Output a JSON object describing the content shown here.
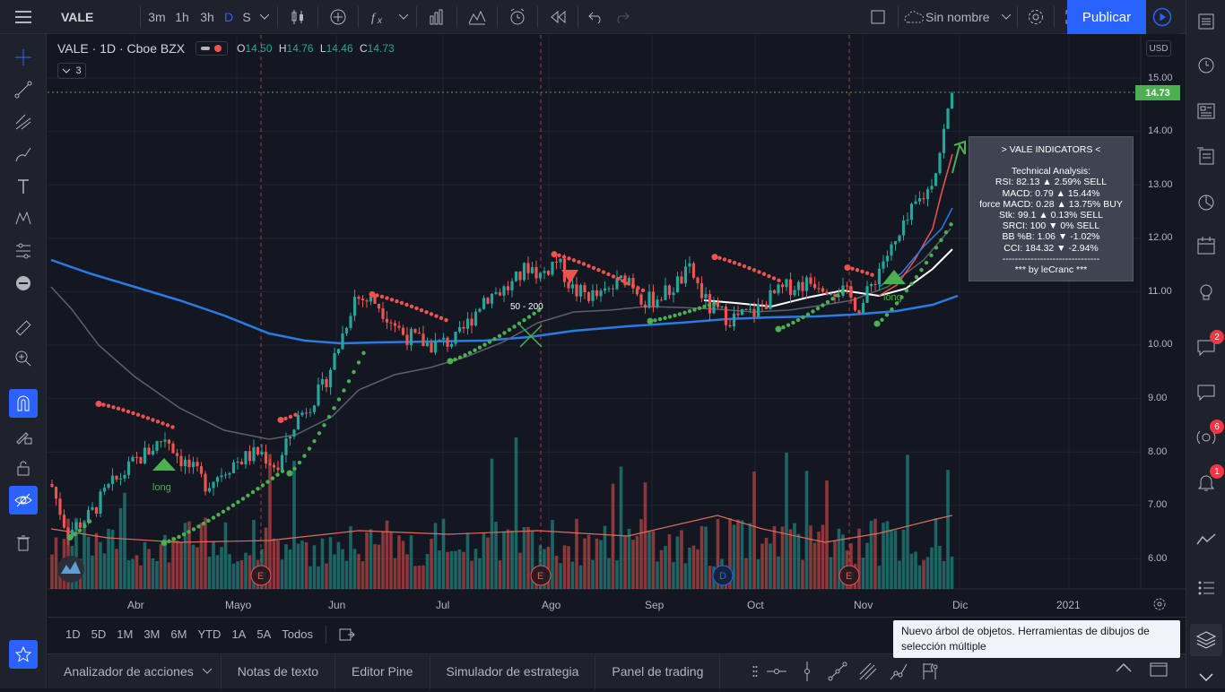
{
  "topbar": {
    "symbol": "VALE",
    "intervals": [
      "3m",
      "1h",
      "3h",
      "D",
      "S"
    ],
    "active_interval": "D",
    "layout_name": "Sin nombre",
    "publish_label": "Publicar"
  },
  "legend": {
    "title": "VALE · 1D · Cboe BZX",
    "o_label": "O",
    "o": "14.50",
    "h_label": "H",
    "h": "14.76",
    "l_label": "L",
    "l": "14.46",
    "c_label": "C",
    "c": "14.73",
    "collapse_count": "3"
  },
  "price_axis": {
    "currency": "USD",
    "labels": [
      "15.00",
      "14.00",
      "13.00",
      "12.00",
      "11.00",
      "10.00",
      "9.00",
      "8.00",
      "7.00",
      "6.00"
    ],
    "last_price": "14.73"
  },
  "time_axis": {
    "labels": [
      "Abr",
      "Mayo",
      "Jun",
      "Jul",
      "Ago",
      "Sep",
      "Oct",
      "Nov",
      "Dic",
      "2021"
    ]
  },
  "annotations": {
    "long1": "long",
    "long2": "long",
    "cross_label": "50 - 200",
    "earnings": "E",
    "dividend": "D"
  },
  "info_box": {
    "title": "> VALE INDICATORS <",
    "subtitle": "Technical Analysis:",
    "lines": [
      "RSI: 82.13 ▲ 2.59% SELL",
      "MACD: 0.79 ▲ 15.44%",
      "force MACD: 0.28 ▲ 13.75% BUY",
      "Stk: 99.1 ▲ 0.13% SELL",
      "SRCI: 100 ▼ 0% SELL",
      "BB %B: 1.06 ▼ -1.02%",
      "CCI: 184.32 ▼ -2.94%"
    ],
    "separator": "-------------------------------",
    "footer": "*** by leCranc ***"
  },
  "range_bar": {
    "ranges": [
      "1D",
      "5D",
      "1M",
      "3M",
      "6M",
      "YTD",
      "1A",
      "5A",
      "Todos"
    ]
  },
  "bottom_bar": {
    "tabs": [
      "Analizador de acciones",
      "Notas de texto",
      "Editor Pine",
      "Simulador de estrategia",
      "Panel de trading"
    ]
  },
  "right_badges": {
    "chat": "2",
    "ideas": "6",
    "alerts": "1"
  },
  "tooltip": {
    "text": "Nuevo árbol de objetos. Herramientas de dibujos de selección múltiple"
  },
  "colors": {
    "up": "#26a69a",
    "down": "#ef5350",
    "accent": "#2962ff",
    "ma_blue": "#2a7be4",
    "sar_green": "#4caf50",
    "sar_red": "#ef5350"
  }
}
